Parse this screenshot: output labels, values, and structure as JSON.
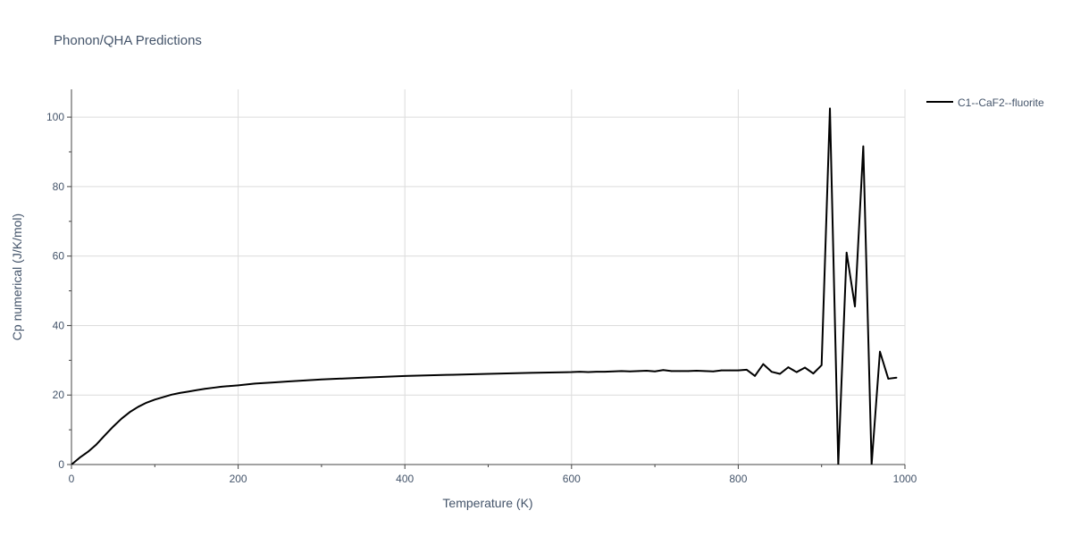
{
  "chart_data": {
    "type": "line",
    "title": "Phonon/QHA Predictions",
    "xlabel": "Temperature (K)",
    "ylabel": "Cp numerical (J/K/mol)",
    "xlim": [
      0,
      1000
    ],
    "ylim": [
      0,
      108
    ],
    "xticks": [
      0,
      200,
      400,
      600,
      800,
      1000
    ],
    "yticks": [
      0,
      20,
      40,
      60,
      80,
      100
    ],
    "grid": true,
    "legend_position": "top-right outside",
    "colors": {
      "series": "#000000",
      "grid": "#dcdcdc",
      "text": "#44546a"
    },
    "series": [
      {
        "name": "C1--CaF2--fluorite",
        "x": [
          0,
          10,
          20,
          30,
          40,
          50,
          60,
          70,
          80,
          90,
          100,
          110,
          120,
          130,
          140,
          150,
          160,
          170,
          180,
          190,
          200,
          220,
          240,
          260,
          280,
          300,
          350,
          400,
          450,
          500,
          550,
          600,
          610,
          620,
          630,
          640,
          650,
          660,
          670,
          680,
          690,
          700,
          710,
          720,
          730,
          740,
          750,
          760,
          770,
          780,
          790,
          800,
          810,
          820,
          830,
          840,
          850,
          860,
          870,
          880,
          890,
          900,
          910,
          920,
          930,
          940,
          950,
          960,
          970,
          980,
          990
        ],
        "y": [
          0,
          2.0,
          3.7,
          5.8,
          8.4,
          10.9,
          13.2,
          15.1,
          16.6,
          17.8,
          18.7,
          19.4,
          20.1,
          20.6,
          21.0,
          21.4,
          21.8,
          22.1,
          22.4,
          22.6,
          22.8,
          23.3,
          23.6,
          23.9,
          24.2,
          24.5,
          25.0,
          25.5,
          25.8,
          26.1,
          26.4,
          26.6,
          26.7,
          26.6,
          26.7,
          26.7,
          26.8,
          26.9,
          26.8,
          26.9,
          27.0,
          26.8,
          27.2,
          26.9,
          26.9,
          26.9,
          27.0,
          26.9,
          26.8,
          27.1,
          27.1,
          27.1,
          27.3,
          25.5,
          28.9,
          26.7,
          26.1,
          28.0,
          26.6,
          27.9,
          26.2,
          28.6,
          102.5,
          0,
          61.0,
          45.5,
          91.6,
          0,
          32.5,
          24.7,
          25.0
        ]
      }
    ]
  }
}
